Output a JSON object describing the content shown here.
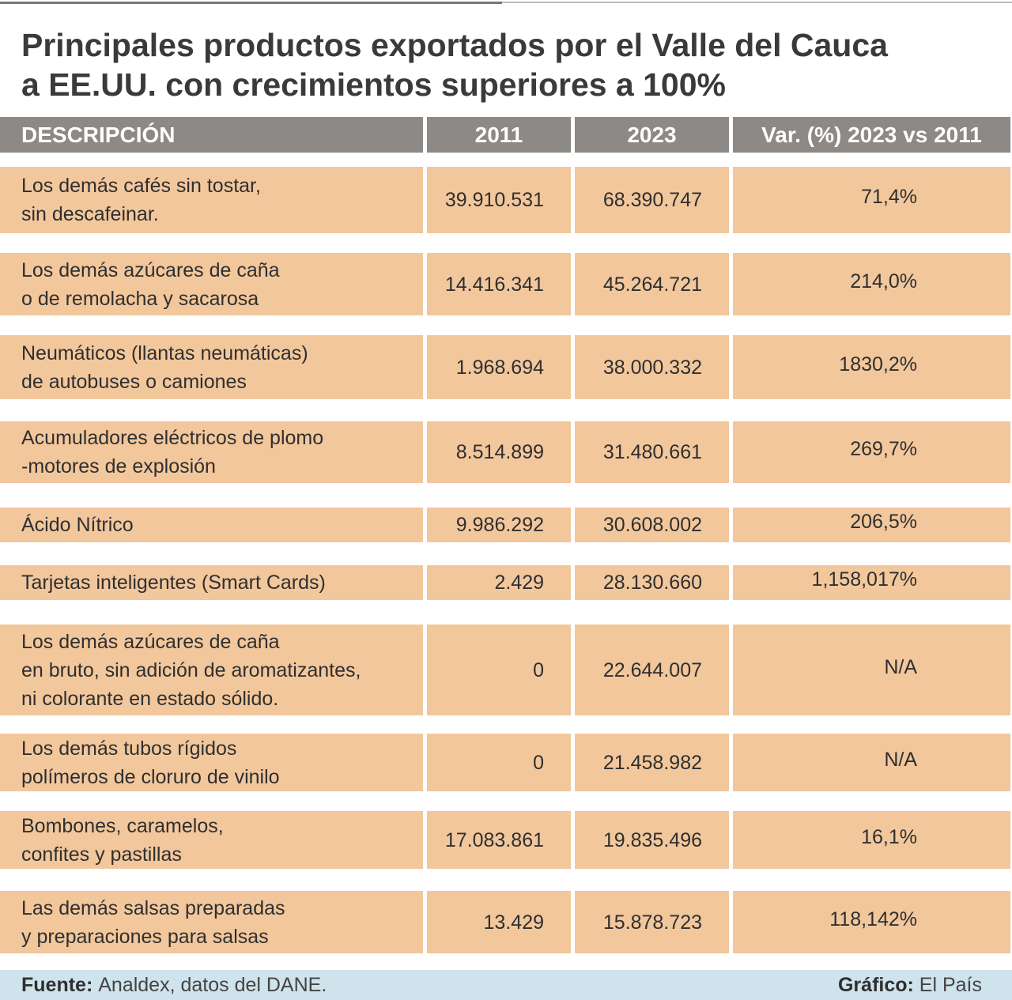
{
  "header": {
    "title": [
      "Principales productos exportados por el Valle del Cauca",
      "a EE.UU. con crecimientos superiores a  100%"
    ]
  },
  "table": {
    "columns": [
      "DESCRIPCIÓN",
      "2011",
      "2023",
      "Var. (%) 2023 vs 2011"
    ],
    "rows": [
      [
        [
          "Los demás cafés sin tostar,",
          "sin descafeinar."
        ],
        "39.910.531",
        "68.390.747",
        "71,4%"
      ],
      [
        [
          "Los demás azúcares de caña",
          "o de remolacha y sacarosa"
        ],
        "14.416.341",
        "45.264.721",
        "214,0%"
      ],
      [
        [
          "Neumáticos (llantas neumáticas)",
          "de autobuses o camiones"
        ],
        "1.968.694",
        "38.000.332",
        "1830,2%"
      ],
      [
        [
          "Acumuladores eléctricos de plomo",
          "-motores de explosión"
        ],
        "8.514.899",
        "31.480.661",
        "269,7%"
      ],
      [
        [
          "Ácido Nítrico"
        ],
        "9.986.292",
        "30.608.002",
        "206,5%"
      ],
      [
        [
          "Tarjetas inteligentes (Smart Cards)"
        ],
        "2.429",
        "28.130.660",
        "1,158,017%"
      ],
      [
        [
          "Los demás azúcares de caña",
          "en bruto, sin adición de aromatizantes,",
          "ni colorante en estado sólido."
        ],
        "0",
        "22.644.007",
        "N/A"
      ],
      [
        [
          "Los demás tubos rígidos",
          "polímeros de cloruro de vinilo"
        ],
        "0",
        "21.458.982",
        "N/A"
      ],
      [
        [
          "Bombones, caramelos,",
          "confites y pastillas"
        ],
        "17.083.861",
        "19.835.496",
        "16,1%"
      ],
      [
        [
          "Las demás salsas preparadas",
          "y preparaciones para salsas"
        ],
        "13.429",
        "15.878.723",
        "118,142%"
      ]
    ]
  },
  "footer": {
    "source_label": "Fuente:",
    "source": "Analdex, datos del DANE.",
    "credit_label": "Gráfico:",
    "credit": "El País"
  }
}
